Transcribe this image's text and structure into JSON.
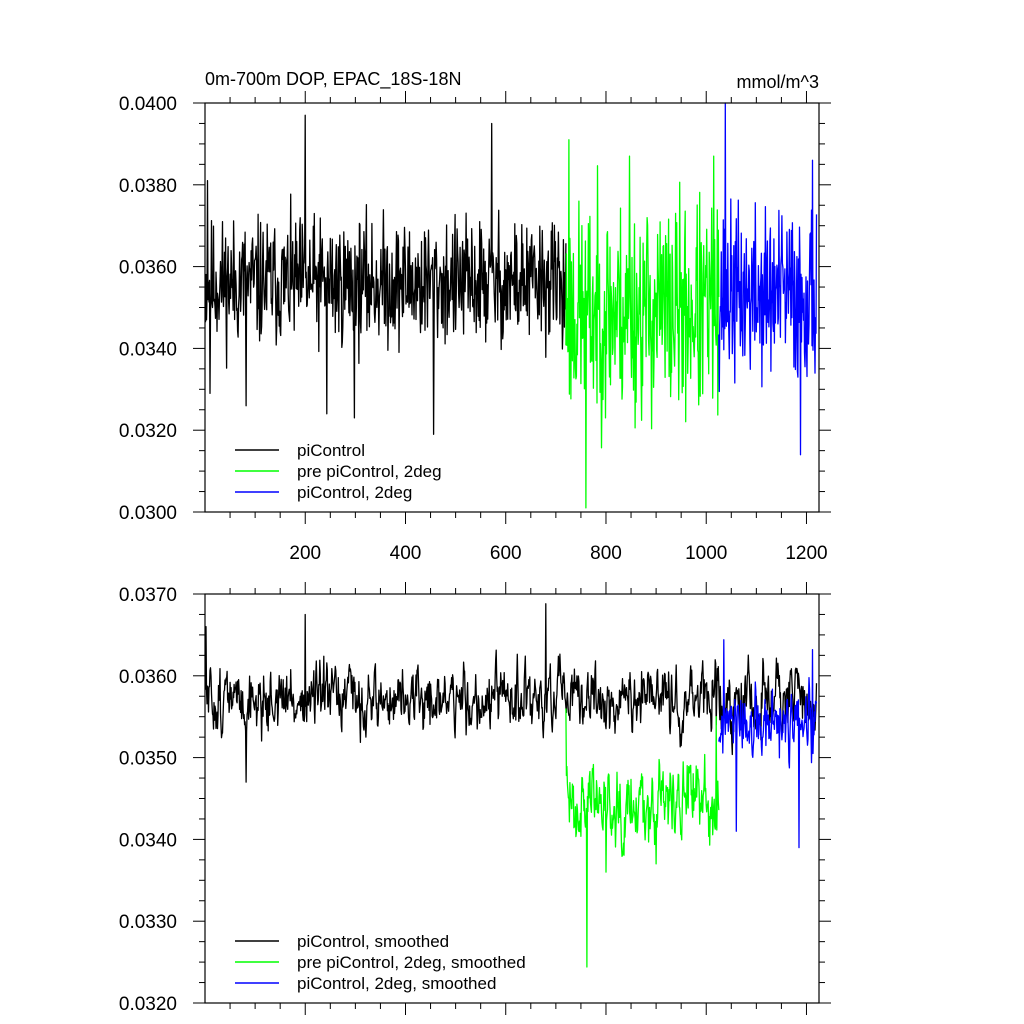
{
  "chart_data": [
    {
      "type": "line",
      "title": "0m-700m DOP, EPAC_18S-18N",
      "units": "mmol/m^3",
      "xlim": [
        0,
        1225
      ],
      "ylim": [
        0.03,
        0.04
      ],
      "xticks": [
        200,
        400,
        600,
        800,
        1000,
        1200
      ],
      "xtick_labels": [
        "200",
        "400",
        "600",
        "800",
        "1000",
        "1200"
      ],
      "yticks": [
        0.03,
        0.032,
        0.034,
        0.036,
        0.038,
        0.04
      ],
      "ytick_labels": [
        "0.0300",
        "0.0320",
        "0.0340",
        "0.0360",
        "0.0380",
        "0.0400"
      ],
      "legend_position": "bottom-left",
      "series": [
        {
          "name": "piControl",
          "color": "#000000",
          "x_range": [
            1,
            720
          ],
          "mean": 0.0356,
          "amplitude": 0.00095,
          "noise_seed": 11,
          "peaks": [
            [
              5,
              0.0381
            ],
            [
              10,
              0.0329
            ],
            [
              82,
              0.0326
            ],
            [
              200,
              0.0397
            ],
            [
              243,
              0.0324
            ],
            [
              298,
              0.0323
            ],
            [
              456,
              0.0319
            ],
            [
              572,
              0.0395
            ]
          ]
        },
        {
          "name": "pre piControl, 2deg",
          "color": "#00ff00",
          "x_range": [
            720,
            1025
          ],
          "mean": 0.0349,
          "amplitude": 0.0016,
          "noise_seed": 23,
          "peaks": [
            [
              726,
              0.0391
            ],
            [
              760,
              0.0301
            ],
            [
              847,
              0.0387
            ],
            [
              1015,
              0.0387
            ]
          ]
        },
        {
          "name": "piControl, 2deg",
          "color": "#0000ff",
          "x_range": [
            1025,
            1220
          ],
          "mean": 0.0353,
          "amplitude": 0.0013,
          "noise_seed": 37,
          "peaks": [
            [
              1038,
              0.04
            ],
            [
              1188,
              0.0314
            ],
            [
              1212,
              0.0386
            ]
          ]
        }
      ]
    },
    {
      "type": "line",
      "title": "",
      "xlim": [
        0,
        1225
      ],
      "ylim": [
        0.032,
        0.037
      ],
      "xticks": [
        200,
        400,
        600,
        800,
        1000,
        1200
      ],
      "yticks": [
        0.032,
        0.033,
        0.034,
        0.035,
        0.036,
        0.037
      ],
      "ytick_labels": [
        "0.0320",
        "0.0330",
        "0.0340",
        "0.0350",
        "0.0360",
        "0.0370"
      ],
      "legend_position": "bottom-left",
      "series": [
        {
          "name": "piControl, smoothed",
          "color": "#000000",
          "x_range": [
            1,
            1220
          ],
          "mean": 0.0357,
          "amplitude": 0.00045,
          "noise_seed": 51,
          "peaks": [
            [
              2,
              0.0366
            ],
            [
              82,
              0.0347
            ],
            [
              200,
              0.03675
            ],
            [
              680,
              0.03688
            ],
            [
              1020,
              0.0354
            ]
          ]
        },
        {
          "name": "pre piControl, 2deg, smoothed",
          "color": "#00ff00",
          "x_range": [
            720,
            1025
          ],
          "mean": 0.0345,
          "amplitude": 0.00055,
          "noise_seed": 63,
          "peaks": [
            [
              720,
              0.0356
            ],
            [
              762,
              0.03244
            ],
            [
              800,
              0.0336
            ],
            [
              900,
              0.0337
            ],
            [
              1020,
              0.0355
            ]
          ]
        },
        {
          "name": "piControl, 2deg, smoothed",
          "color": "#0000ff",
          "x_range": [
            1025,
            1220
          ],
          "mean": 0.03535,
          "amplitude": 0.0005,
          "noise_seed": 77,
          "peaks": [
            [
              1035,
              0.03644
            ],
            [
              1060,
              0.0341
            ],
            [
              1185,
              0.0339
            ],
            [
              1212,
              0.03632
            ]
          ]
        }
      ]
    }
  ]
}
